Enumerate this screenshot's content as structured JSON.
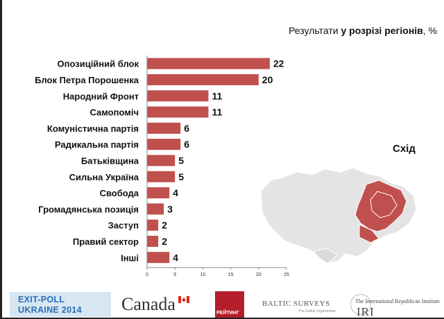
{
  "title": {
    "prefix": "Результати ",
    "bold": "у розрізі регіонів",
    "suffix": ", %"
  },
  "region_label": "Схід",
  "colors": {
    "bar": "#c0504d",
    "map_land": "#e4e4e4",
    "map_region": "#c0504d"
  },
  "chart_data": {
    "type": "bar",
    "orientation": "horizontal",
    "categories": [
      "Опозиційний блок",
      "Блок Петра Порошенка",
      "Народний Фронт",
      "Самопоміч",
      "Комуністична партія",
      "Радикальна партія",
      "Батьківщина",
      "Сильна Україна",
      "Свобода",
      "Громадянська позиція",
      "Заступ",
      "Правий сектор",
      "Інші"
    ],
    "values": [
      22,
      20,
      11,
      11,
      6,
      6,
      5,
      5,
      4,
      3,
      2,
      2,
      4
    ],
    "xlim": [
      0,
      25
    ],
    "xticks": [
      0,
      5,
      10,
      15,
      20,
      25
    ],
    "grid": false,
    "data_labels": true
  },
  "footer": {
    "exit_line1": "EXIT-POLL",
    "exit_line2": "UKRAINE 2014",
    "canada": "Canada",
    "rating": "РЕЙТИНГ",
    "baltic": "BALTIC SURVEYS",
    "baltic_sub": "The Gallup Organization",
    "iri_top": "The International Republican Institute",
    "iri_big": "IRI"
  }
}
